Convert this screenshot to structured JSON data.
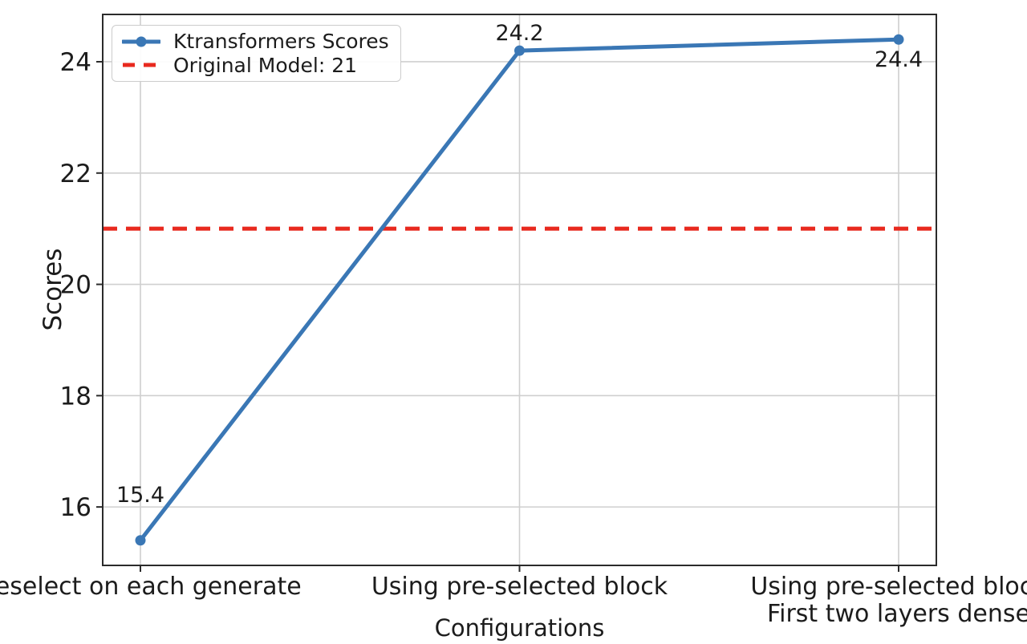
{
  "figure": {
    "background": "#ffffff",
    "text_color": "#1c1c1c"
  },
  "chart_data": {
    "type": "line",
    "title": "",
    "xlabel": "Configurations",
    "ylabel": "Scores",
    "categories": [
      {
        "lines": [
          "Reselect on each generate"
        ]
      },
      {
        "lines": [
          "Using pre-selected block"
        ]
      },
      {
        "lines": [
          "Using pre-selected block",
          "First two layers dense"
        ]
      }
    ],
    "series": [
      {
        "name": "Ktransformers Scores",
        "values": [
          15.4,
          24.2,
          24.4
        ],
        "color": "#3a77b5",
        "marker": "circle"
      }
    ],
    "point_labels": [
      "15.4",
      "24.2",
      "24.4"
    ],
    "reference_line": {
      "label": "Original Model: 21",
      "value": 21,
      "color": "#e8291e",
      "style": "dashed"
    },
    "yticks": [
      "16",
      "18",
      "20",
      "22",
      "24"
    ],
    "ytick_values": [
      16,
      18,
      20,
      22,
      24
    ],
    "ylim": [
      14.95,
      24.85
    ],
    "grid": true,
    "legend_position": "upper-left"
  },
  "colors": {
    "grid": "#cfcfcf",
    "spine": "#2b2b2b",
    "tick": "#2b2b2b"
  }
}
